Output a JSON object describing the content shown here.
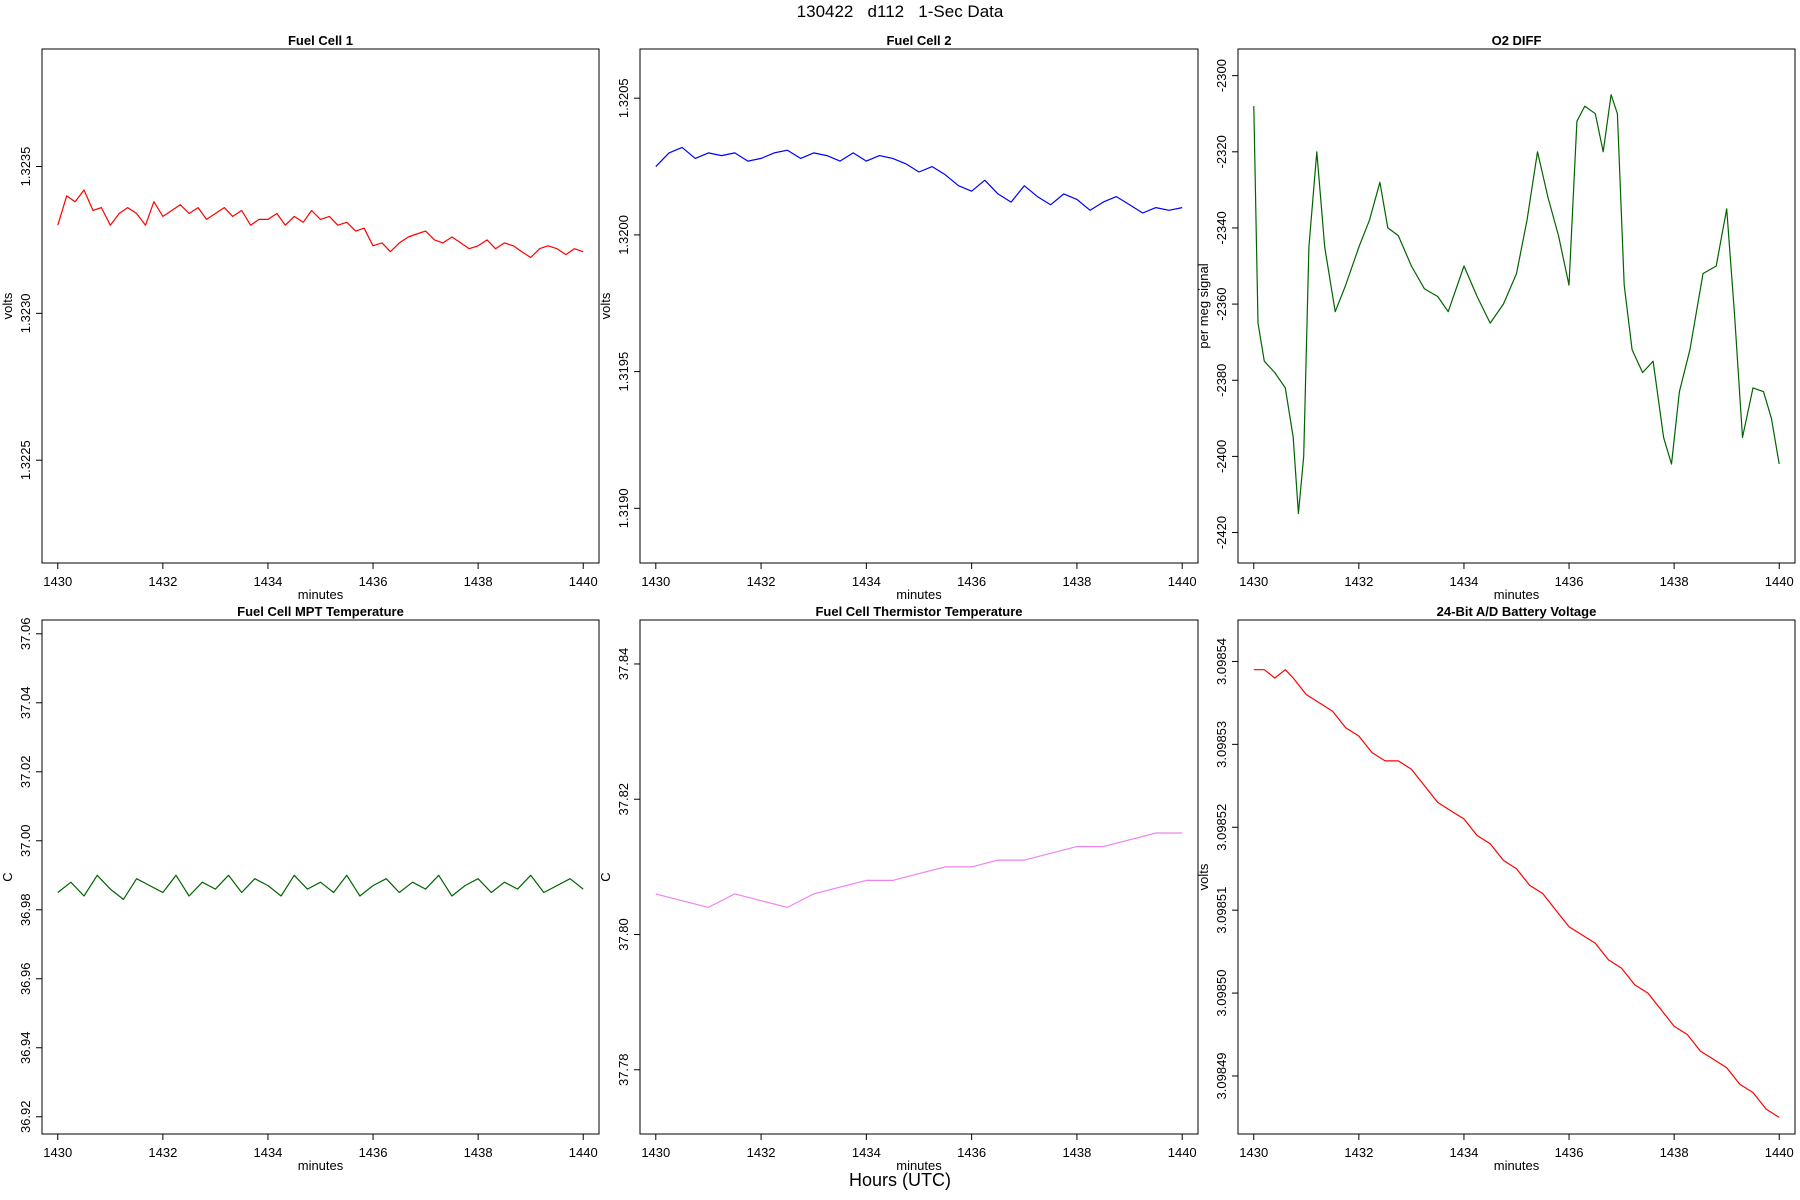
{
  "page_title": "130422   d112   1-Sec Data",
  "bottom_label": "Hours (UTC)",
  "chart_data": [
    {
      "type": "line",
      "title": "Fuel Cell 1",
      "xlabel": "minutes",
      "ylabel": "volts",
      "color": "#ff0000",
      "xlim": [
        1429.7,
        1440.3
      ],
      "ylim": [
        1.32215,
        1.3239
      ],
      "xticks": [
        1430,
        1432,
        1434,
        1436,
        1438,
        1440
      ],
      "xtick_labels": [
        "1430",
        "1432",
        "1434",
        "1436",
        "1438",
        "1440"
      ],
      "yticks": [
        1.3225,
        1.323,
        1.3235
      ],
      "ytick_labels": [
        "1.3225",
        "1.3230",
        "1.3235"
      ],
      "series": [
        {
          "name": "Fuel Cell 1",
          "x": [
            1430.0,
            1430.17,
            1430.33,
            1430.5,
            1430.67,
            1430.83,
            1431.0,
            1431.17,
            1431.33,
            1431.5,
            1431.67,
            1431.83,
            1432.0,
            1432.17,
            1432.33,
            1432.5,
            1432.67,
            1432.83,
            1433.0,
            1433.17,
            1433.33,
            1433.5,
            1433.67,
            1433.83,
            1434.0,
            1434.17,
            1434.33,
            1434.5,
            1434.67,
            1434.83,
            1435.0,
            1435.17,
            1435.33,
            1435.5,
            1435.67,
            1435.83,
            1436.0,
            1436.17,
            1436.33,
            1436.5,
            1436.67,
            1436.83,
            1437.0,
            1437.17,
            1437.33,
            1437.5,
            1437.67,
            1437.83,
            1438.0,
            1438.17,
            1438.33,
            1438.5,
            1438.67,
            1438.83,
            1439.0,
            1439.17,
            1439.33,
            1439.5,
            1439.67,
            1439.83,
            1440.0
          ],
          "y": [
            1.3233,
            1.3234,
            1.32338,
            1.32342,
            1.32335,
            1.32336,
            1.3233,
            1.32334,
            1.32336,
            1.32334,
            1.3233,
            1.32338,
            1.32333,
            1.32335,
            1.32337,
            1.32334,
            1.32336,
            1.32332,
            1.32334,
            1.32336,
            1.32333,
            1.32335,
            1.3233,
            1.32332,
            1.32332,
            1.32334,
            1.3233,
            1.32333,
            1.32331,
            1.32335,
            1.32332,
            1.32333,
            1.3233,
            1.32331,
            1.32328,
            1.32329,
            1.32323,
            1.32324,
            1.32321,
            1.32324,
            1.32326,
            1.32327,
            1.32328,
            1.32325,
            1.32324,
            1.32326,
            1.32324,
            1.32322,
            1.32323,
            1.32325,
            1.32322,
            1.32324,
            1.32323,
            1.32321,
            1.32319,
            1.32322,
            1.32323,
            1.32322,
            1.3232,
            1.32322,
            1.32321
          ]
        }
      ]
    },
    {
      "type": "line",
      "title": "Fuel Cell 2",
      "xlabel": "minutes",
      "ylabel": "volts",
      "color": "#0000ff",
      "xlim": [
        1429.7,
        1440.3
      ],
      "ylim": [
        1.3188,
        1.32068
      ],
      "xticks": [
        1430,
        1432,
        1434,
        1436,
        1438,
        1440
      ],
      "xtick_labels": [
        "1430",
        "1432",
        "1434",
        "1436",
        "1438",
        "1440"
      ],
      "yticks": [
        1.319,
        1.3195,
        1.32,
        1.3205
      ],
      "ytick_labels": [
        "1.3190",
        "1.3195",
        "1.3200",
        "1.3205"
      ],
      "series": [
        {
          "name": "Fuel Cell 2",
          "x": [
            1430.0,
            1430.25,
            1430.5,
            1430.75,
            1431.0,
            1431.25,
            1431.5,
            1431.75,
            1432.0,
            1432.25,
            1432.5,
            1432.75,
            1433.0,
            1433.25,
            1433.5,
            1433.75,
            1434.0,
            1434.25,
            1434.5,
            1434.75,
            1435.0,
            1435.25,
            1435.5,
            1435.75,
            1436.0,
            1436.25,
            1436.5,
            1436.75,
            1437.0,
            1437.25,
            1437.5,
            1437.75,
            1438.0,
            1438.25,
            1438.5,
            1438.75,
            1439.0,
            1439.25,
            1439.5,
            1439.75,
            1440.0
          ],
          "y": [
            1.32025,
            1.3203,
            1.32032,
            1.32028,
            1.3203,
            1.32029,
            1.3203,
            1.32027,
            1.32028,
            1.3203,
            1.32031,
            1.32028,
            1.3203,
            1.32029,
            1.32027,
            1.3203,
            1.32027,
            1.32029,
            1.32028,
            1.32026,
            1.32023,
            1.32025,
            1.32022,
            1.32018,
            1.32016,
            1.3202,
            1.32015,
            1.32012,
            1.32018,
            1.32014,
            1.32011,
            1.32015,
            1.32013,
            1.32009,
            1.32012,
            1.32014,
            1.32011,
            1.32008,
            1.3201,
            1.32009,
            1.3201
          ]
        }
      ]
    },
    {
      "type": "line",
      "title": "O2 DIFF",
      "xlabel": "minutes",
      "ylabel": "per meg signal",
      "color": "#006400",
      "xlim": [
        1429.7,
        1440.3
      ],
      "ylim": [
        -2428,
        -2293
      ],
      "xticks": [
        1430,
        1432,
        1434,
        1436,
        1438,
        1440
      ],
      "xtick_labels": [
        "1430",
        "1432",
        "1434",
        "1436",
        "1438",
        "1440"
      ],
      "yticks": [
        -2420,
        -2400,
        -2380,
        -2360,
        -2340,
        -2320,
        -2300
      ],
      "ytick_labels": [
        "-2420",
        "-2400",
        "-2380",
        "-2360",
        "-2340",
        "-2320",
        "-2300"
      ],
      "series": [
        {
          "name": "O2 DIFF",
          "x": [
            1430.0,
            1430.08,
            1430.2,
            1430.4,
            1430.6,
            1430.75,
            1430.85,
            1430.95,
            1431.05,
            1431.2,
            1431.35,
            1431.55,
            1431.75,
            1432.0,
            1432.2,
            1432.4,
            1432.55,
            1432.75,
            1433.0,
            1433.25,
            1433.5,
            1433.7,
            1434.0,
            1434.25,
            1434.5,
            1434.75,
            1435.0,
            1435.2,
            1435.4,
            1435.6,
            1435.8,
            1436.0,
            1436.15,
            1436.3,
            1436.5,
            1436.65,
            1436.8,
            1436.92,
            1437.05,
            1437.2,
            1437.4,
            1437.6,
            1437.8,
            1437.95,
            1438.1,
            1438.3,
            1438.55,
            1438.8,
            1439.0,
            1439.15,
            1439.3,
            1439.5,
            1439.7,
            1439.85,
            1440.0
          ],
          "y": [
            -2308,
            -2365,
            -2375,
            -2378,
            -2382,
            -2395,
            -2415,
            -2400,
            -2345,
            -2320,
            -2345,
            -2362,
            -2355,
            -2345,
            -2338,
            -2328,
            -2340,
            -2342,
            -2350,
            -2356,
            -2358,
            -2362,
            -2350,
            -2358,
            -2365,
            -2360,
            -2352,
            -2338,
            -2320,
            -2332,
            -2342,
            -2355,
            -2312,
            -2308,
            -2310,
            -2320,
            -2305,
            -2310,
            -2355,
            -2372,
            -2378,
            -2375,
            -2395,
            -2402,
            -2383,
            -2372,
            -2352,
            -2350,
            -2335,
            -2363,
            -2395,
            -2382,
            -2383,
            -2390,
            -2402
          ]
        }
      ]
    },
    {
      "type": "line",
      "title": "Fuel Cell MPT Temperature",
      "xlabel": "minutes",
      "ylabel": "C",
      "color": "#006400",
      "xlim": [
        1429.7,
        1440.3
      ],
      "ylim": [
        36.915,
        37.064
      ],
      "xticks": [
        1430,
        1432,
        1434,
        1436,
        1438,
        1440
      ],
      "xtick_labels": [
        "1430",
        "1432",
        "1434",
        "1436",
        "1438",
        "1440"
      ],
      "yticks": [
        36.92,
        36.94,
        36.96,
        36.98,
        37.0,
        37.02,
        37.04,
        37.06
      ],
      "ytick_labels": [
        "36.92",
        "36.94",
        "36.96",
        "36.98",
        "37.00",
        "37.02",
        "37.04",
        "37.06"
      ],
      "series": [
        {
          "name": "MPT Temperature",
          "x": [
            1430.0,
            1430.25,
            1430.5,
            1430.75,
            1431.0,
            1431.25,
            1431.5,
            1431.75,
            1432.0,
            1432.25,
            1432.5,
            1432.75,
            1433.0,
            1433.25,
            1433.5,
            1433.75,
            1434.0,
            1434.25,
            1434.5,
            1434.75,
            1435.0,
            1435.25,
            1435.5,
            1435.75,
            1436.0,
            1436.25,
            1436.5,
            1436.75,
            1437.0,
            1437.25,
            1437.5,
            1437.75,
            1438.0,
            1438.25,
            1438.5,
            1438.75,
            1439.0,
            1439.25,
            1439.5,
            1439.75,
            1440.0
          ],
          "y": [
            36.985,
            36.988,
            36.984,
            36.99,
            36.986,
            36.983,
            36.989,
            36.987,
            36.985,
            36.99,
            36.984,
            36.988,
            36.986,
            36.99,
            36.985,
            36.989,
            36.987,
            36.984,
            36.99,
            36.986,
            36.988,
            36.985,
            36.99,
            36.984,
            36.987,
            36.989,
            36.985,
            36.988,
            36.986,
            36.99,
            36.984,
            36.987,
            36.989,
            36.985,
            36.988,
            36.986,
            36.99,
            36.985,
            36.987,
            36.989,
            36.986
          ]
        }
      ]
    },
    {
      "type": "line",
      "title": "Fuel Cell Thermistor Temperature",
      "xlabel": "minutes",
      "ylabel": "C",
      "color": "#ee82ee",
      "xlim": [
        1429.7,
        1440.3
      ],
      "ylim": [
        37.7705,
        37.8465
      ],
      "xticks": [
        1430,
        1432,
        1434,
        1436,
        1438,
        1440
      ],
      "xtick_labels": [
        "1430",
        "1432",
        "1434",
        "1436",
        "1438",
        "1440"
      ],
      "yticks": [
        37.78,
        37.8,
        37.82,
        37.84
      ],
      "ytick_labels": [
        "37.78",
        "37.80",
        "37.82",
        "37.84"
      ],
      "series": [
        {
          "name": "Thermistor Temperature",
          "x": [
            1430.0,
            1430.5,
            1431.0,
            1431.5,
            1432.0,
            1432.5,
            1433.0,
            1433.5,
            1434.0,
            1434.5,
            1435.0,
            1435.5,
            1436.0,
            1436.5,
            1437.0,
            1437.5,
            1438.0,
            1438.5,
            1439.0,
            1439.5,
            1440.0
          ],
          "y": [
            37.806,
            37.805,
            37.804,
            37.806,
            37.805,
            37.804,
            37.806,
            37.807,
            37.808,
            37.808,
            37.809,
            37.81,
            37.81,
            37.811,
            37.811,
            37.812,
            37.813,
            37.813,
            37.814,
            37.815,
            37.815
          ]
        }
      ]
    },
    {
      "type": "line",
      "title": "24-Bit A/D Battery Voltage",
      "xlabel": "minutes",
      "ylabel": "volts",
      "color": "#ff0000",
      "xlim": [
        1429.7,
        1440.3
      ],
      "ylim": [
        3.098483,
        3.098545
      ],
      "xticks": [
        1430,
        1432,
        1434,
        1436,
        1438,
        1440
      ],
      "xtick_labels": [
        "1430",
        "1432",
        "1434",
        "1436",
        "1438",
        "1440"
      ],
      "yticks": [
        3.09849,
        3.0985,
        3.09851,
        3.09852,
        3.09853,
        3.09854
      ],
      "ytick_labels": [
        "3.09849",
        "3.09850",
        "3.09851",
        "3.09852",
        "3.09853",
        "3.09854"
      ],
      "series": [
        {
          "name": "Battery Voltage",
          "x": [
            1430.0,
            1430.2,
            1430.4,
            1430.6,
            1430.75,
            1431.0,
            1431.25,
            1431.5,
            1431.75,
            1432.0,
            1432.25,
            1432.5,
            1432.75,
            1433.0,
            1433.25,
            1433.5,
            1433.75,
            1434.0,
            1434.25,
            1434.5,
            1434.75,
            1435.0,
            1435.25,
            1435.5,
            1435.75,
            1436.0,
            1436.25,
            1436.5,
            1436.75,
            1437.0,
            1437.25,
            1437.5,
            1437.75,
            1438.0,
            1438.25,
            1438.5,
            1438.75,
            1439.0,
            1439.25,
            1439.5,
            1439.75,
            1440.0
          ],
          "y": [
            3.098539,
            3.098539,
            3.098538,
            3.098539,
            3.098538,
            3.098536,
            3.098535,
            3.098534,
            3.098532,
            3.098531,
            3.098529,
            3.098528,
            3.098528,
            3.098527,
            3.098525,
            3.098523,
            3.098522,
            3.098521,
            3.098519,
            3.098518,
            3.098516,
            3.098515,
            3.098513,
            3.098512,
            3.09851,
            3.098508,
            3.098507,
            3.098506,
            3.098504,
            3.098503,
            3.098501,
            3.0985,
            3.098498,
            3.098496,
            3.098495,
            3.098493,
            3.098492,
            3.098491,
            3.098489,
            3.098488,
            3.098486,
            3.098485
          ]
        }
      ]
    }
  ]
}
